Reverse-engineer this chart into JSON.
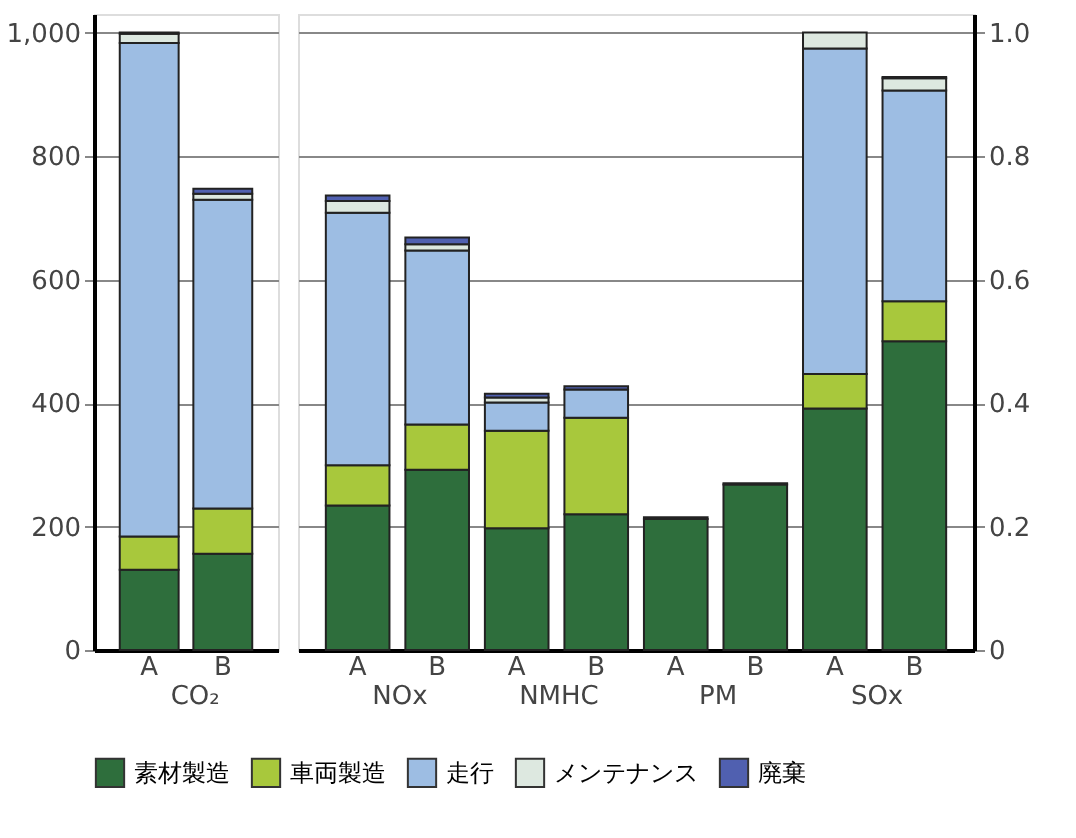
{
  "chart_data": [
    {
      "type": "bar",
      "stacked": true,
      "categories": [
        "A",
        "B"
      ],
      "annotations": [
        "CO₂"
      ],
      "series": [
        {
          "name": "素材製造",
          "color": "#2e6e3c",
          "values": [
            130,
            156
          ]
        },
        {
          "name": "車両製造",
          "color": "#a8c83c",
          "values": [
            54,
            73
          ]
        },
        {
          "name": "走行",
          "color": "#9dbde3",
          "values": [
            799,
            500
          ]
        },
        {
          "name": "メンテナンス",
          "color": "#dde8e0",
          "values": [
            15,
            10
          ]
        },
        {
          "name": "廃棄",
          "color": "#5060b0",
          "values": [
            2,
            8
          ]
        }
      ],
      "ylim": [
        0,
        1030
      ],
      "yticks": [
        0,
        200,
        400,
        600,
        800,
        {
          "value": 1000,
          "label": "1,000"
        }
      ],
      "grid": "y",
      "legend": "bottom"
    },
    {
      "type": "bar",
      "stacked": true,
      "categories": [
        "A",
        "B",
        "A",
        "B",
        "A",
        "B",
        "A",
        "B"
      ],
      "annotations": [
        "NOx",
        "NMHC",
        "PM",
        "SOx"
      ],
      "series": [
        {
          "name": "素材製造",
          "color": "#2e6e3c",
          "axis": "y2",
          "values": [
            0.234,
            0.292,
            0.197,
            0.22,
            0.212,
            0.268,
            0.391,
            0.5
          ]
        },
        {
          "name": "車両製造",
          "color": "#a8c83c",
          "axis": "y2",
          "values": [
            0.065,
            0.073,
            0.158,
            0.156,
            0,
            0,
            0.056,
            0.065
          ]
        },
        {
          "name": "走行",
          "color": "#9dbde3",
          "axis": "y2",
          "values": [
            0.409,
            0.282,
            0.046,
            0.046,
            0,
            0,
            0.527,
            0.341
          ]
        },
        {
          "name": "メンテナンス",
          "color": "#dde8e0",
          "axis": "y2",
          "values": [
            0.019,
            0.01,
            0.008,
            null,
            null,
            null,
            0.026,
            0.02
          ]
        },
        {
          "name": "廃棄",
          "color": "#5060b0",
          "axis": "y2",
          "values": [
            0.009,
            0.011,
            0.006,
            0.005,
            0.003,
            0.002,
            0,
            0.002
          ]
        }
      ],
      "y2lim": [
        0,
        1.03
      ],
      "y2ticks": [
        0,
        0.2,
        0.4,
        0.6,
        0.8,
        {
          "value": 1,
          "label": "1.0"
        }
      ],
      "grid": "y"
    }
  ]
}
